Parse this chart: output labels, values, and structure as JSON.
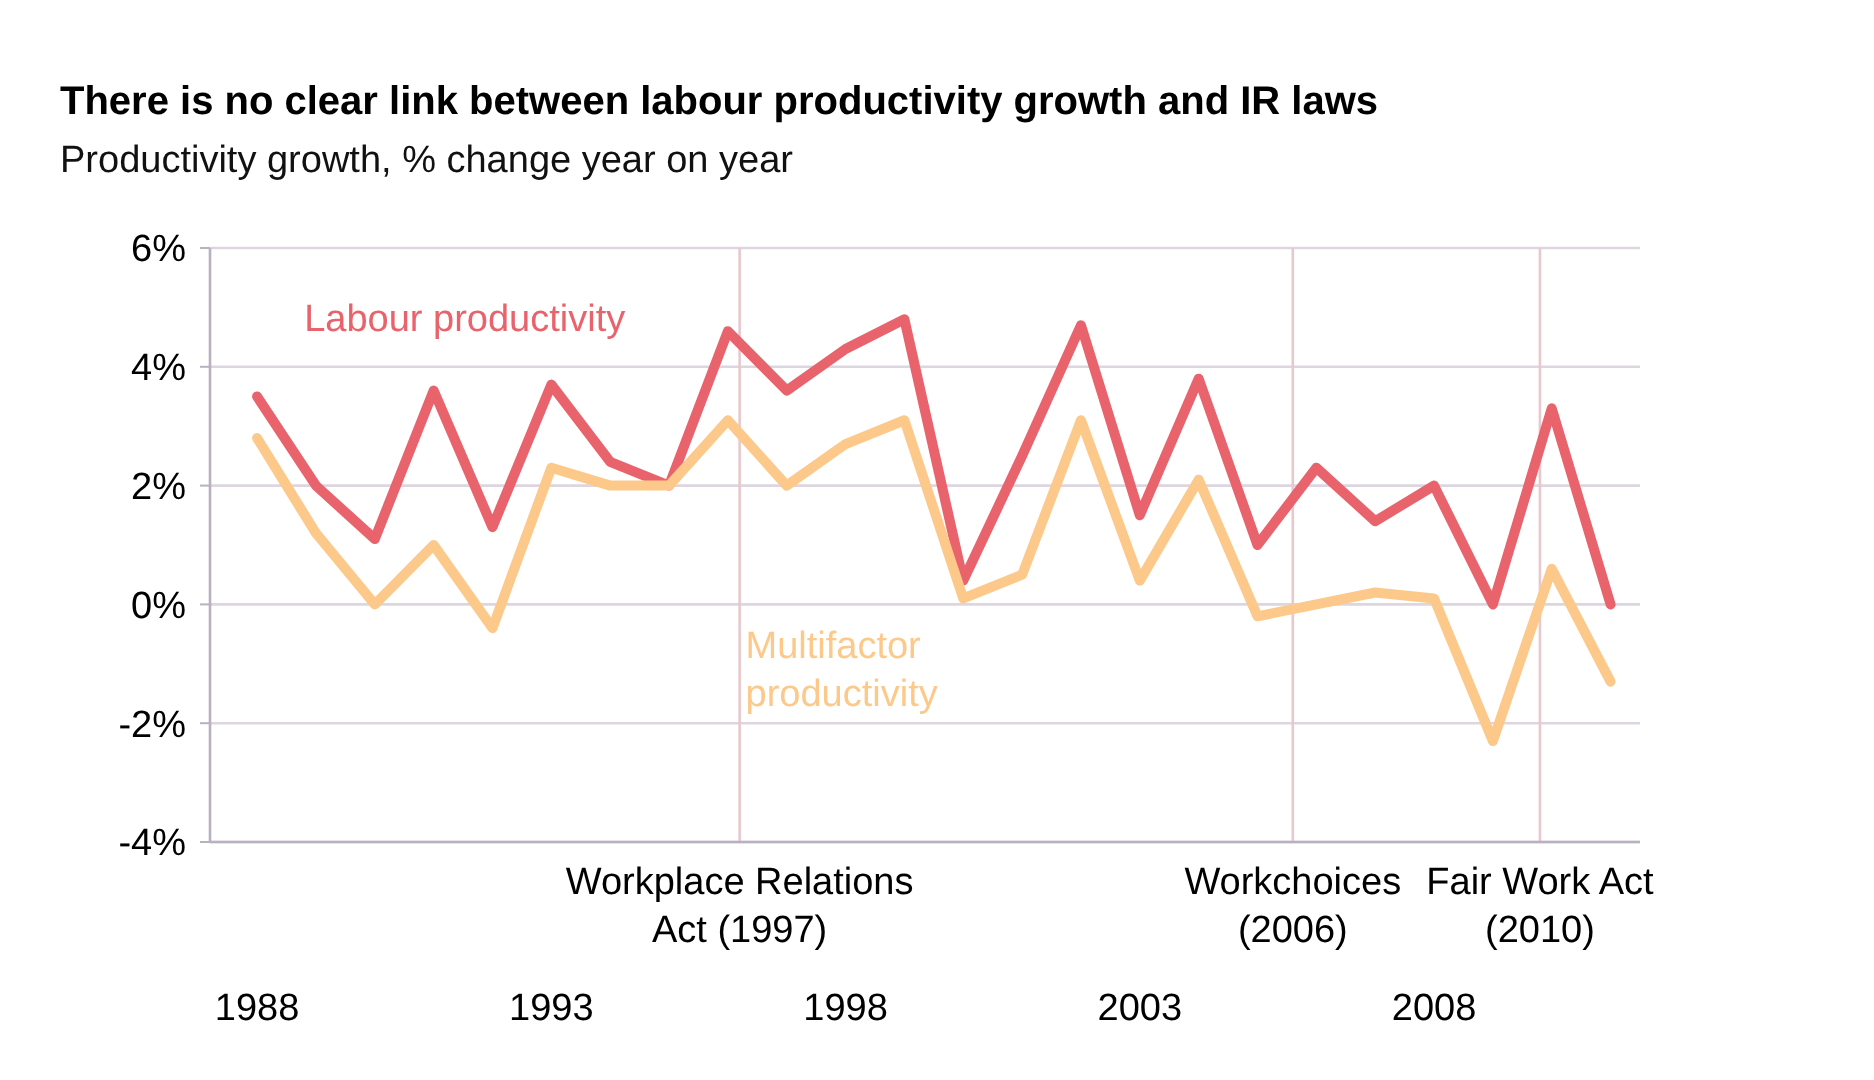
{
  "chart_data": {
    "type": "line",
    "title": "There is no clear link between labour productivity growth and IR laws",
    "subtitle": "Productivity growth, % change year on year",
    "x": [
      1988,
      1989,
      1990,
      1991,
      1992,
      1993,
      1994,
      1995,
      1996,
      1997,
      1998,
      1999,
      2000,
      2001,
      2002,
      2003,
      2004,
      2005,
      2006,
      2007,
      2008,
      2009,
      2010,
      2011
    ],
    "series": [
      {
        "name": "Labour productivity",
        "color": "#e8636b",
        "values": [
          3.5,
          2.0,
          1.1,
          3.6,
          1.3,
          3.7,
          2.4,
          2.0,
          4.6,
          3.6,
          4.3,
          4.8,
          0.4,
          2.5,
          4.7,
          1.5,
          3.8,
          1.0,
          2.3,
          1.4,
          2.0,
          0.0,
          3.3,
          0.0
        ]
      },
      {
        "name": "Multifactor productivity",
        "color": "#fcc98a",
        "values": [
          2.8,
          1.2,
          0.0,
          1.0,
          -0.4,
          2.3,
          2.0,
          2.0,
          3.1,
          2.0,
          2.7,
          3.1,
          0.1,
          0.5,
          3.1,
          0.4,
          2.1,
          -0.2,
          0.0,
          0.2,
          0.1,
          -2.3,
          0.6,
          -1.3
        ]
      }
    ],
    "xlim": [
      1987.2,
      2011.5
    ],
    "xticks": [
      1988,
      1993,
      1998,
      2003,
      2008
    ],
    "ylim": [
      -4,
      6
    ],
    "yticks": [
      {
        "value": -4,
        "label": "-4%"
      },
      {
        "value": -2,
        "label": "-2%"
      },
      {
        "value": 0,
        "label": "0%"
      },
      {
        "value": 2,
        "label": "2%"
      },
      {
        "value": 4,
        "label": "4%"
      },
      {
        "value": 6,
        "label": "6%"
      }
    ],
    "grid": "y",
    "marker": "none",
    "line_style": "solid",
    "ref_lines": [
      {
        "axis": "x",
        "value": 1996.2,
        "label": "Workplace Relations Act (1997)",
        "color": "#e8c8cc"
      },
      {
        "axis": "x",
        "value": 2005.6,
        "label": "Workchoices (2006)",
        "color": "#e8c8cc"
      },
      {
        "axis": "x",
        "value": 2009.8,
        "label": "Fair Work Act (2010)",
        "color": "#e8c8cc"
      }
    ]
  }
}
